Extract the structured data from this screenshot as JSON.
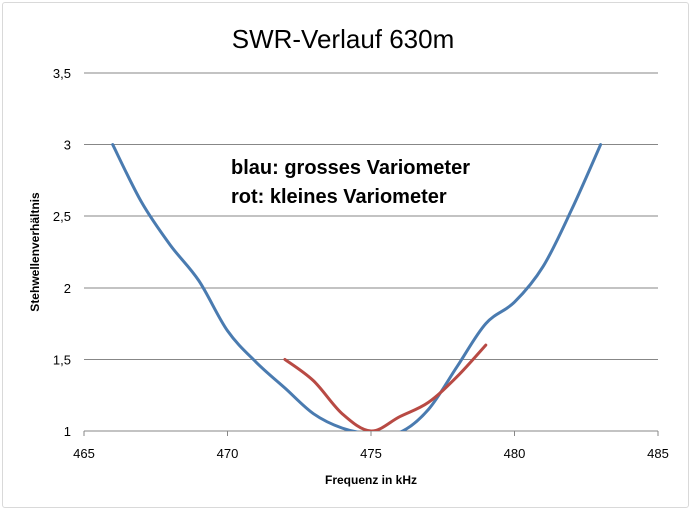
{
  "chart_data": {
    "type": "line",
    "title": "SWR-Verlauf 630m",
    "xlabel": "Frequenz in kHz",
    "ylabel": "Stehwellenverhältnis",
    "xlim": [
      465,
      485
    ],
    "ylim": [
      1,
      3.5
    ],
    "x_ticks": [
      465,
      470,
      475,
      480,
      485
    ],
    "x_tick_labels": [
      "465",
      "470",
      "475",
      "480",
      "485"
    ],
    "y_ticks": [
      1,
      1.5,
      2,
      2.5,
      3,
      3.5
    ],
    "y_tick_labels": [
      "1",
      "1,5",
      "2",
      "2,5",
      "3",
      "3,5"
    ],
    "grid": "horizontal",
    "legend": "none",
    "annotations": [
      "blau: grosses Variometer",
      "rot: kleines Variometer"
    ],
    "series": [
      {
        "color": "#4a7bb0",
        "x": [
          466,
          467,
          468,
          469,
          470,
          471,
          472,
          473,
          474,
          475,
          476,
          477,
          478,
          479,
          480,
          481,
          482,
          483
        ],
        "y": [
          3.0,
          2.6,
          2.3,
          2.05,
          1.7,
          1.48,
          1.3,
          1.12,
          1.02,
          0.98,
          0.99,
          1.15,
          1.45,
          1.75,
          1.9,
          2.15,
          2.55,
          3.0
        ]
      },
      {
        "color": "#b84a44",
        "x": [
          472,
          473,
          474,
          475,
          476,
          477,
          478,
          479
        ],
        "y": [
          1.5,
          1.35,
          1.12,
          1.0,
          1.1,
          1.2,
          1.38,
          1.6
        ]
      }
    ]
  }
}
